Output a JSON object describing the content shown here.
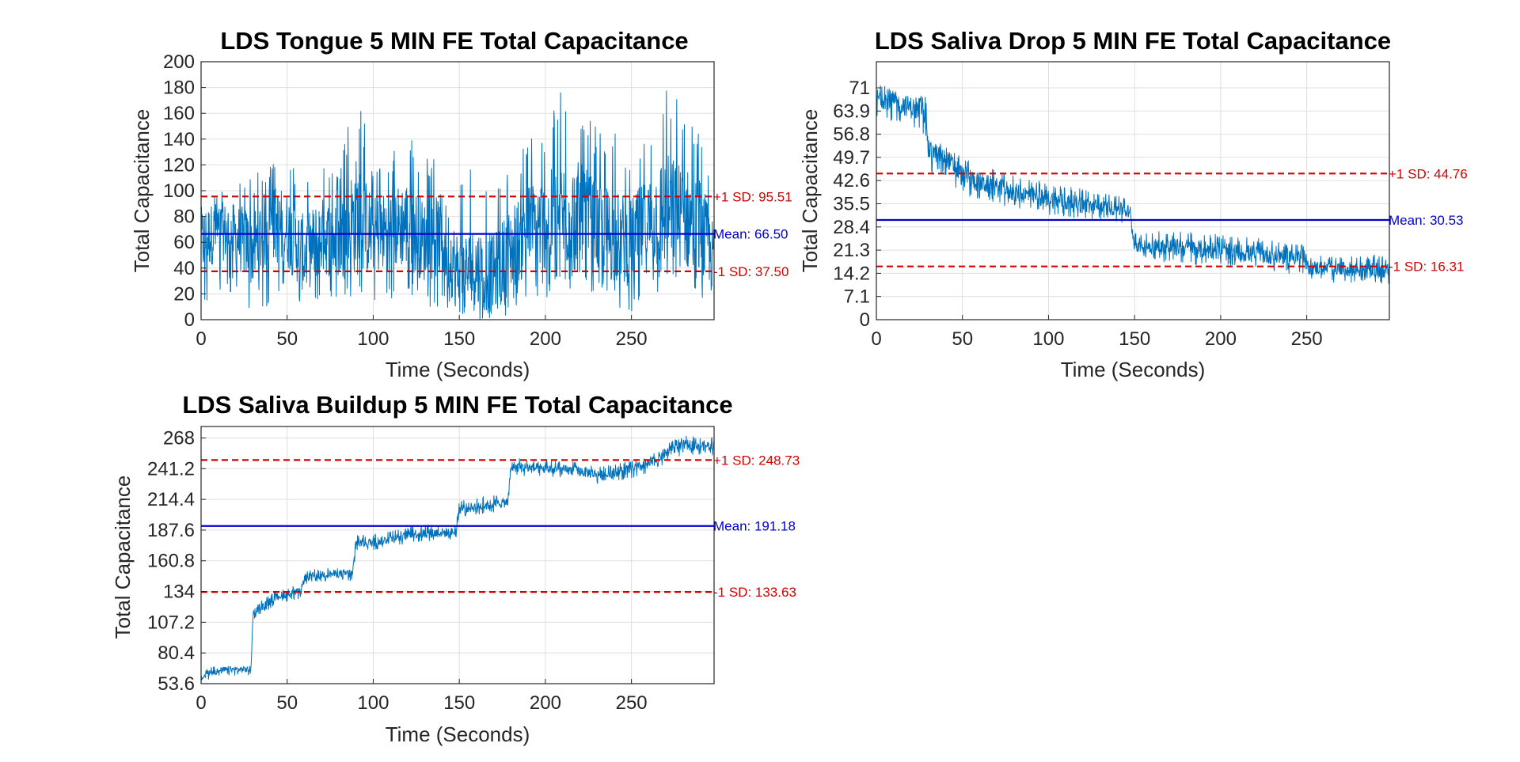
{
  "chart_data": [
    {
      "type": "line",
      "title": "LDS Tongue 5 MIN FE Total Capacitance",
      "xlabel": "Time (Seconds)",
      "ylabel": "Total Capacitance",
      "xlim": [
        0,
        298
      ],
      "ylim": [
        0,
        200
      ],
      "xticks": [
        "0",
        "50",
        "100",
        "150",
        "200",
        "250"
      ],
      "yticks": [
        "0",
        "20",
        "40",
        "60",
        "80",
        "100",
        "120",
        "140",
        "160",
        "180",
        "200"
      ],
      "grid": true,
      "series": [
        {
          "x": [
            0,
            10,
            20,
            30,
            40,
            50,
            60,
            70,
            80,
            90,
            100,
            110,
            120,
            130,
            140,
            150,
            160,
            170,
            180,
            190,
            200,
            210,
            220,
            230,
            240,
            250,
            260,
            270,
            280,
            290,
            298
          ],
          "values": [
            60,
            70,
            65,
            55,
            75,
            70,
            50,
            65,
            60,
            80,
            65,
            70,
            75,
            60,
            65,
            35,
            40,
            35,
            55,
            70,
            75,
            80,
            85,
            70,
            65,
            60,
            75,
            85,
            80,
            70,
            45
          ],
          "band_min": [
            5,
            20,
            20,
            5,
            10,
            15,
            0,
            10,
            10,
            10,
            15,
            15,
            20,
            10,
            10,
            0,
            0,
            0,
            5,
            10,
            15,
            20,
            25,
            15,
            10,
            5,
            15,
            25,
            20,
            0,
            0
          ],
          "band_max": [
            105,
            100,
            110,
            115,
            120,
            125,
            110,
            120,
            115,
            180,
            125,
            130,
            145,
            125,
            130,
            110,
            120,
            115,
            125,
            140,
            150,
            184,
            160,
            150,
            145,
            130,
            150,
            190,
            165,
            148,
            100
          ],
          "color": "#0072bd"
        }
      ],
      "reference_lines": [
        {
          "y": 95.51,
          "label": "+1 SD: 95.51",
          "color": "#d40000",
          "style": "dashed"
        },
        {
          "y": 66.5,
          "label": "Mean: 66.50",
          "color": "#0000cc",
          "style": "solid"
        },
        {
          "y": 37.5,
          "label": "-1 SD: 37.50",
          "color": "#d40000",
          "style": "dashed"
        }
      ]
    },
    {
      "type": "line",
      "title": "LDS Saliva Drop 5 MIN FE Total Capacitance",
      "xlabel": "Time (Seconds)",
      "ylabel": "Total Capacitance",
      "xlim": [
        0,
        298
      ],
      "ylim": [
        0,
        79
      ],
      "xticks": [
        "0",
        "50",
        "100",
        "150",
        "200",
        "250"
      ],
      "yticks": [
        "0",
        "7.1",
        "14.2",
        "21.3",
        "28.4",
        "35.5",
        "42.6",
        "49.7",
        "56.8",
        "63.9",
        "71"
      ],
      "ytick_values": [
        0,
        7.1,
        14.2,
        21.3,
        28.4,
        35.5,
        42.6,
        49.7,
        56.8,
        63.9,
        71
      ],
      "grid": true,
      "series": [
        {
          "x": [
            0,
            10,
            20,
            29,
            30,
            40,
            50,
            60,
            80,
            100,
            120,
            140,
            147,
            150,
            160,
            180,
            200,
            220,
            240,
            248,
            250,
            270,
            290,
            298
          ],
          "values": [
            68,
            67,
            65,
            63,
            52,
            50,
            44,
            42,
            39,
            37,
            35,
            34,
            33,
            23,
            22.5,
            22,
            21,
            20,
            19.5,
            19,
            16,
            15.5,
            15,
            15
          ],
          "band_min": [
            61,
            60,
            58,
            56,
            45,
            44,
            38,
            37,
            34,
            32,
            31,
            30,
            29,
            19,
            18,
            17,
            16,
            15,
            14,
            14,
            12,
            11,
            11,
            11
          ],
          "band_max": [
            72,
            71,
            70,
            68,
            56,
            54,
            50,
            48,
            44,
            42,
            40,
            38,
            37,
            27,
            27,
            27,
            26,
            25,
            24,
            23,
            20,
            19,
            20,
            19
          ],
          "color": "#0072bd"
        }
      ],
      "reference_lines": [
        {
          "y": 44.76,
          "label": "+1 SD: 44.76",
          "color": "#d40000",
          "style": "dashed"
        },
        {
          "y": 30.53,
          "label": "Mean: 30.53",
          "color": "#0000cc",
          "style": "solid"
        },
        {
          "y": 16.31,
          "label": "-1 SD: 16.31",
          "color": "#d40000",
          "style": "dashed"
        }
      ]
    },
    {
      "type": "line",
      "title": "LDS Saliva Buildup 5 MIN FE Total Capacitance",
      "xlabel": "Time (Seconds)",
      "ylabel": "Total Capacitance",
      "xlim": [
        0,
        298
      ],
      "ylim": [
        53.6,
        278
      ],
      "xticks": [
        "0",
        "50",
        "100",
        "150",
        "200",
        "250"
      ],
      "yticks": [
        "53.6",
        "80.4",
        "107.2",
        "134",
        "160.8",
        "187.6",
        "214.4",
        "241.2",
        "268"
      ],
      "ytick_values": [
        53.6,
        80.4,
        107.2,
        134,
        160.8,
        187.6,
        214.4,
        241.2,
        268
      ],
      "grid": true,
      "series": [
        {
          "x": [
            0,
            5,
            15,
            29,
            30,
            35,
            45,
            58,
            60,
            70,
            88,
            90,
            100,
            118,
            120,
            135,
            148,
            150,
            160,
            178,
            180,
            190,
            200,
            220,
            235,
            240,
            250,
            260,
            270,
            280,
            298
          ],
          "values": [
            58,
            63,
            66,
            66,
            112,
            120,
            130,
            134,
            146,
            149,
            150,
            176,
            177,
            182,
            184,
            185,
            186,
            206,
            208,
            212,
            243,
            242,
            241,
            239,
            235,
            238,
            241,
            245,
            255,
            262,
            261
          ],
          "band_min": [
            52,
            58,
            61,
            61,
            106,
            114,
            124,
            128,
            140,
            143,
            143,
            169,
            170,
            175,
            177,
            178,
            179,
            199,
            201,
            205,
            235,
            234,
            233,
            231,
            227,
            230,
            233,
            237,
            246,
            254,
            253
          ],
          "band_max": [
            63,
            68,
            71,
            71,
            118,
            126,
            136,
            140,
            153,
            155,
            156,
            183,
            184,
            189,
            191,
            193,
            193,
            214,
            216,
            220,
            251,
            250,
            249,
            247,
            243,
            246,
            249,
            253,
            263,
            270,
            269
          ],
          "color": "#0072bd"
        }
      ],
      "reference_lines": [
        {
          "y": 248.73,
          "label": "+1 SD: 248.73",
          "color": "#d40000",
          "style": "dashed"
        },
        {
          "y": 191.18,
          "label": "Mean: 191.18",
          "color": "#0000cc",
          "style": "solid"
        },
        {
          "y": 133.63,
          "label": "-1 SD: 133.63",
          "color": "#d40000",
          "style": "dashed"
        }
      ]
    }
  ]
}
